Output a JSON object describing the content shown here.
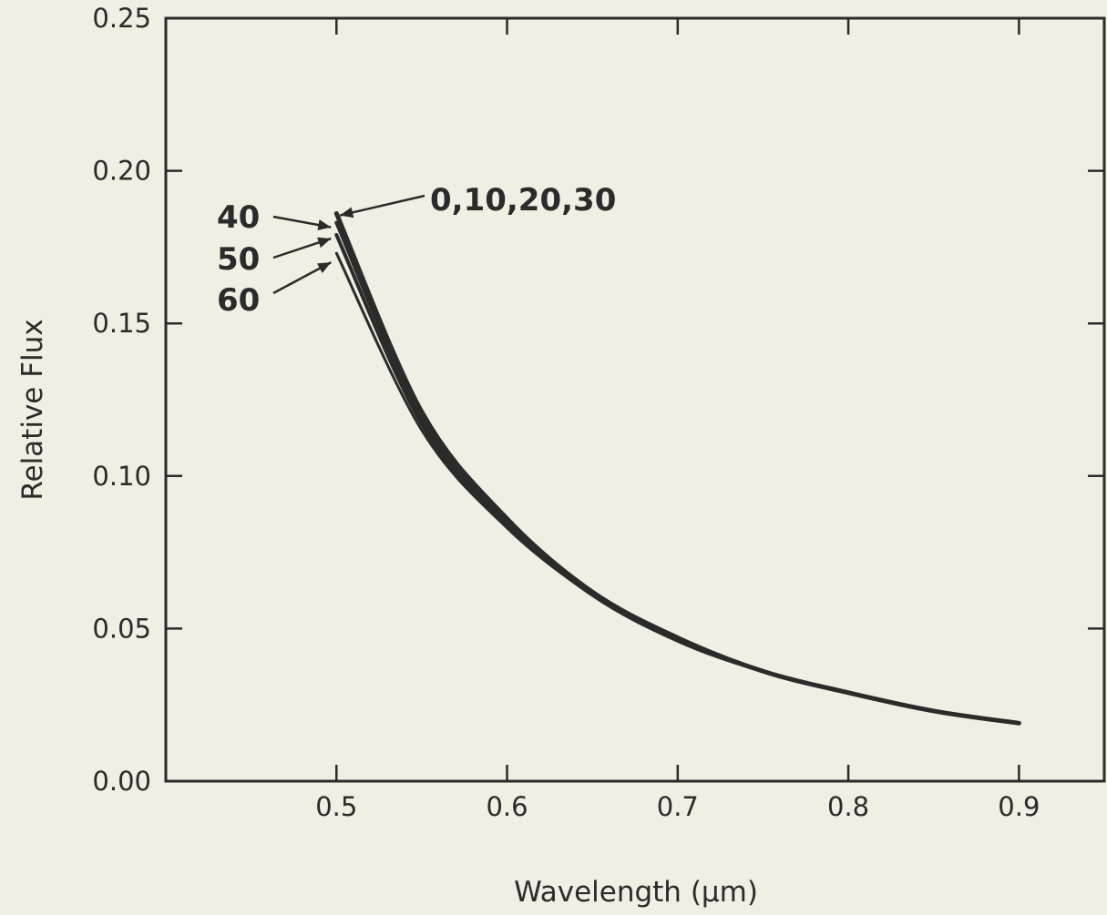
{
  "chart_data": {
    "type": "line",
    "title": "",
    "xlabel": "Wavelength (μm)",
    "ylabel": "Relative Flux",
    "xlim": [
      0.4,
      0.95
    ],
    "ylim": [
      0.0,
      0.25
    ],
    "xticks": [
      "0.5",
      "0.6",
      "0.7",
      "0.8",
      "0.9"
    ],
    "yticks": [
      "0.00",
      "0.05",
      "0.10",
      "0.15",
      "0.20",
      "0.25"
    ],
    "grid": false,
    "colors": {
      "background": "#f1eee3",
      "ink": "#2b2b2b"
    },
    "series": [
      {
        "name": "0,10,20,30",
        "x": [
          0.5,
          0.55,
          0.6,
          0.65,
          0.7,
          0.75,
          0.8,
          0.85,
          0.9
        ],
        "y": [
          0.186,
          0.121,
          0.086,
          0.062,
          0.047,
          0.036,
          0.029,
          0.023,
          0.019
        ]
      },
      {
        "name": "40",
        "x": [
          0.5,
          0.55,
          0.6,
          0.65,
          0.7,
          0.75,
          0.8,
          0.85,
          0.9
        ],
        "y": [
          0.183,
          0.119,
          0.085,
          0.062,
          0.047,
          0.036,
          0.029,
          0.023,
          0.019
        ]
      },
      {
        "name": "50",
        "x": [
          0.5,
          0.55,
          0.6,
          0.65,
          0.7,
          0.75,
          0.8,
          0.85,
          0.9
        ],
        "y": [
          0.179,
          0.117,
          0.084,
          0.061,
          0.046,
          0.036,
          0.029,
          0.023,
          0.019
        ]
      },
      {
        "name": "60",
        "x": [
          0.5,
          0.55,
          0.6,
          0.65,
          0.7,
          0.75,
          0.8,
          0.85,
          0.9
        ],
        "y": [
          0.173,
          0.115,
          0.083,
          0.061,
          0.046,
          0.036,
          0.029,
          0.023,
          0.019
        ]
      }
    ],
    "annotations": [
      "0,10,20,30",
      "40",
      "50",
      "60"
    ]
  }
}
